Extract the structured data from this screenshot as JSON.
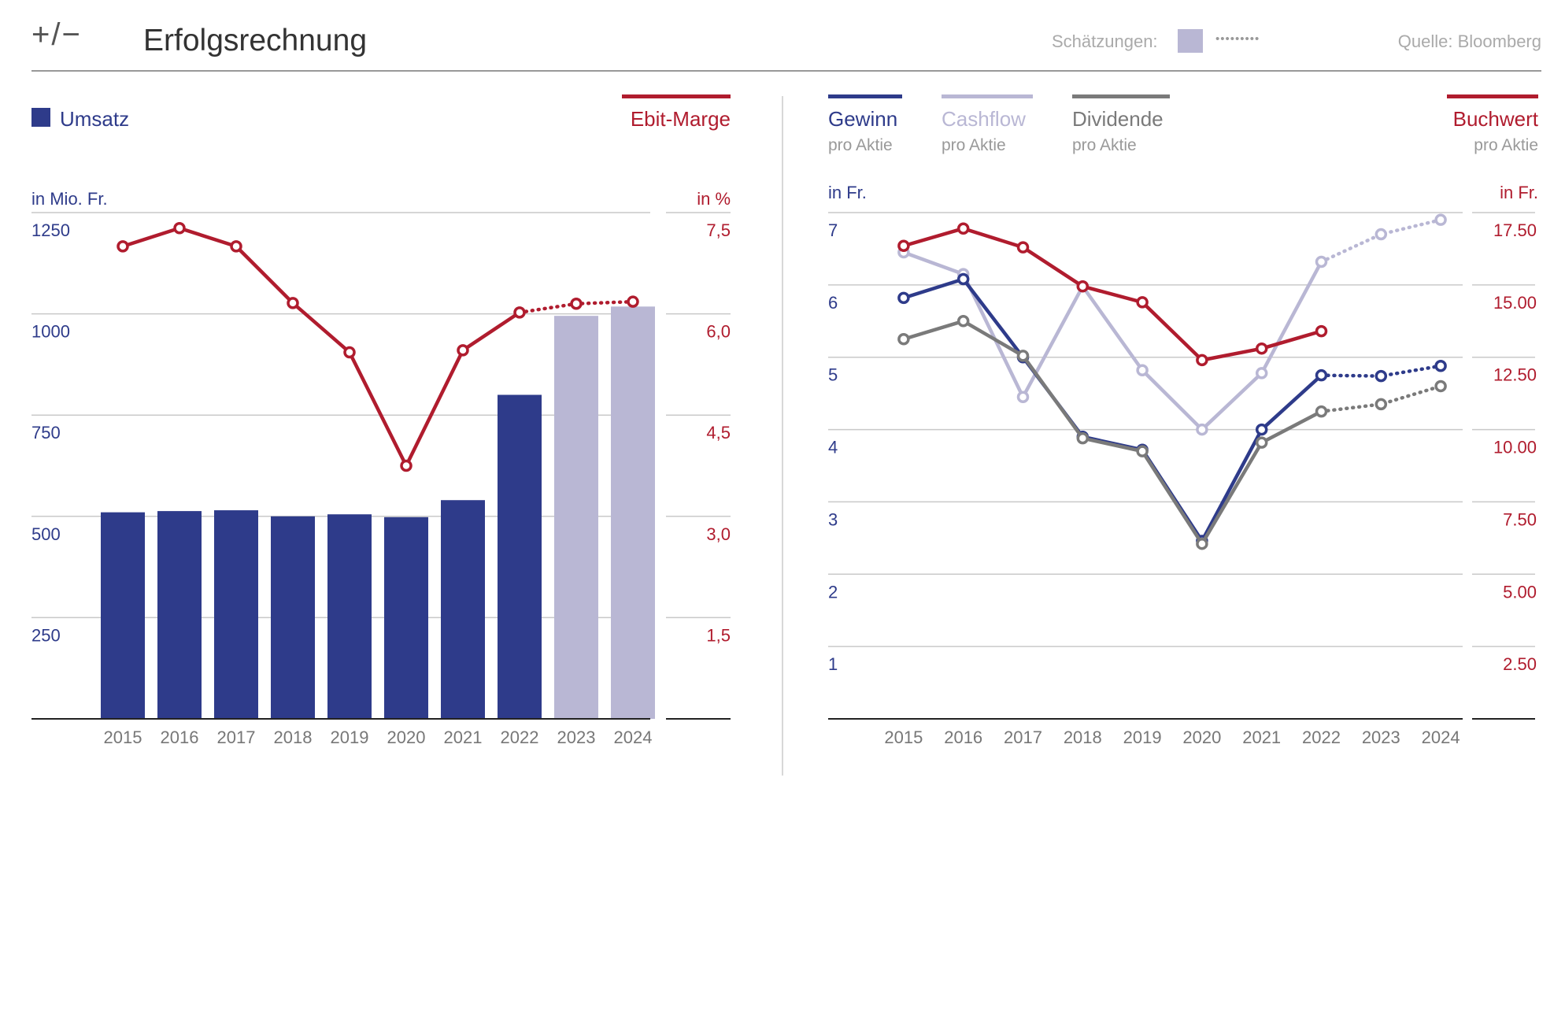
{
  "header": {
    "logo": "+/−",
    "title": "Erfolgsrechnung",
    "estimates_label": "Schätzungen:",
    "estimates_dots": "•••••••••",
    "source": "Quelle: Bloomberg"
  },
  "colors": {
    "navy": "#2e3b8a",
    "lavender": "#b9b7d4",
    "red": "#b01c2e",
    "gray": "#7a7a7a",
    "grid": "#c9c9c9",
    "axis_text": "#777777"
  },
  "icons": [
    "plus-minus-logo-icon",
    "legend-square-icon",
    "legend-line-icon",
    "dotted-line-icon"
  ],
  "chart_data": [
    {
      "type": "bar",
      "name": "umsatz-ebit",
      "categories": [
        "2015",
        "2016",
        "2017",
        "2018",
        "2019",
        "2020",
        "2021",
        "2022",
        "2023",
        "2024"
      ],
      "legend_left": "Umsatz",
      "legend_right": "Ebit-Marge",
      "ylabel_left": "in Mio. Fr.",
      "ylabel_right": "in %",
      "y_left": {
        "lim": [
          0,
          1250
        ],
        "ticks": [
          "250",
          "500",
          "750",
          "1000",
          "1250"
        ]
      },
      "y_right": {
        "lim": [
          0,
          7.5
        ],
        "ticks": [
          "1,5",
          "3,0",
          "4,5",
          "6,0",
          "7,5"
        ]
      },
      "series": [
        {
          "key": "umsatz",
          "axis": "left",
          "kind": "bar",
          "values": [
            510,
            513,
            515,
            500,
            505,
            498,
            540,
            800,
            995,
            1018
          ],
          "estimate_from_index": 8
        },
        {
          "key": "ebit",
          "axis": "right",
          "kind": "line",
          "values": [
            7.0,
            7.27,
            7.0,
            6.16,
            5.43,
            3.75,
            5.46,
            6.02,
            6.15,
            6.18
          ],
          "estimate_from_index": 8
        }
      ],
      "grid": true
    },
    {
      "type": "line",
      "name": "pro-aktie",
      "categories": [
        "2015",
        "2016",
        "2017",
        "2018",
        "2019",
        "2020",
        "2021",
        "2022",
        "2023",
        "2024"
      ],
      "ylabel_left": "in Fr.",
      "ylabel_right": "in Fr.",
      "y_left": {
        "lim": [
          0,
          7
        ],
        "ticks": [
          "1",
          "2",
          "3",
          "4",
          "5",
          "6",
          "7"
        ]
      },
      "y_right": {
        "lim": [
          0,
          17.5
        ],
        "ticks": [
          "2.50",
          "5.00",
          "7.50",
          "10.00",
          "12.50",
          "15.00",
          "17.50"
        ]
      },
      "legend": [
        {
          "key": "gewinn",
          "label": "Gewinn",
          "sub": "pro Aktie"
        },
        {
          "key": "cashflow",
          "label": "Cashflow",
          "sub": "pro Aktie"
        },
        {
          "key": "dividende",
          "label": "Dividende",
          "sub": "pro Aktie"
        },
        {
          "key": "buchwert",
          "label": "Buchwert",
          "sub": "pro Aktie"
        }
      ],
      "series": [
        {
          "key": "gewinn",
          "axis": "left",
          "values": [
            5.82,
            6.08,
            5.0,
            3.9,
            3.72,
            2.46,
            4.0,
            4.75,
            4.74,
            4.88
          ],
          "estimate_from_index": 8
        },
        {
          "key": "cashflow",
          "axis": "left",
          "values": [
            6.45,
            6.15,
            4.45,
            5.98,
            4.82,
            4.0,
            4.78,
            6.32,
            6.7,
            6.9
          ],
          "estimate_from_index": 8
        },
        {
          "key": "dividende",
          "axis": "left",
          "values": [
            5.25,
            5.5,
            5.02,
            3.88,
            3.7,
            2.42,
            3.82,
            4.25,
            4.35,
            4.6
          ],
          "estimate_from_index": 8
        },
        {
          "key": "buchwert",
          "axis": "right",
          "values": [
            16.35,
            16.95,
            16.3,
            14.95,
            14.4,
            12.4,
            12.8,
            13.4,
            null,
            null
          ],
          "estimate_from_index": 8
        }
      ],
      "grid": true
    }
  ]
}
